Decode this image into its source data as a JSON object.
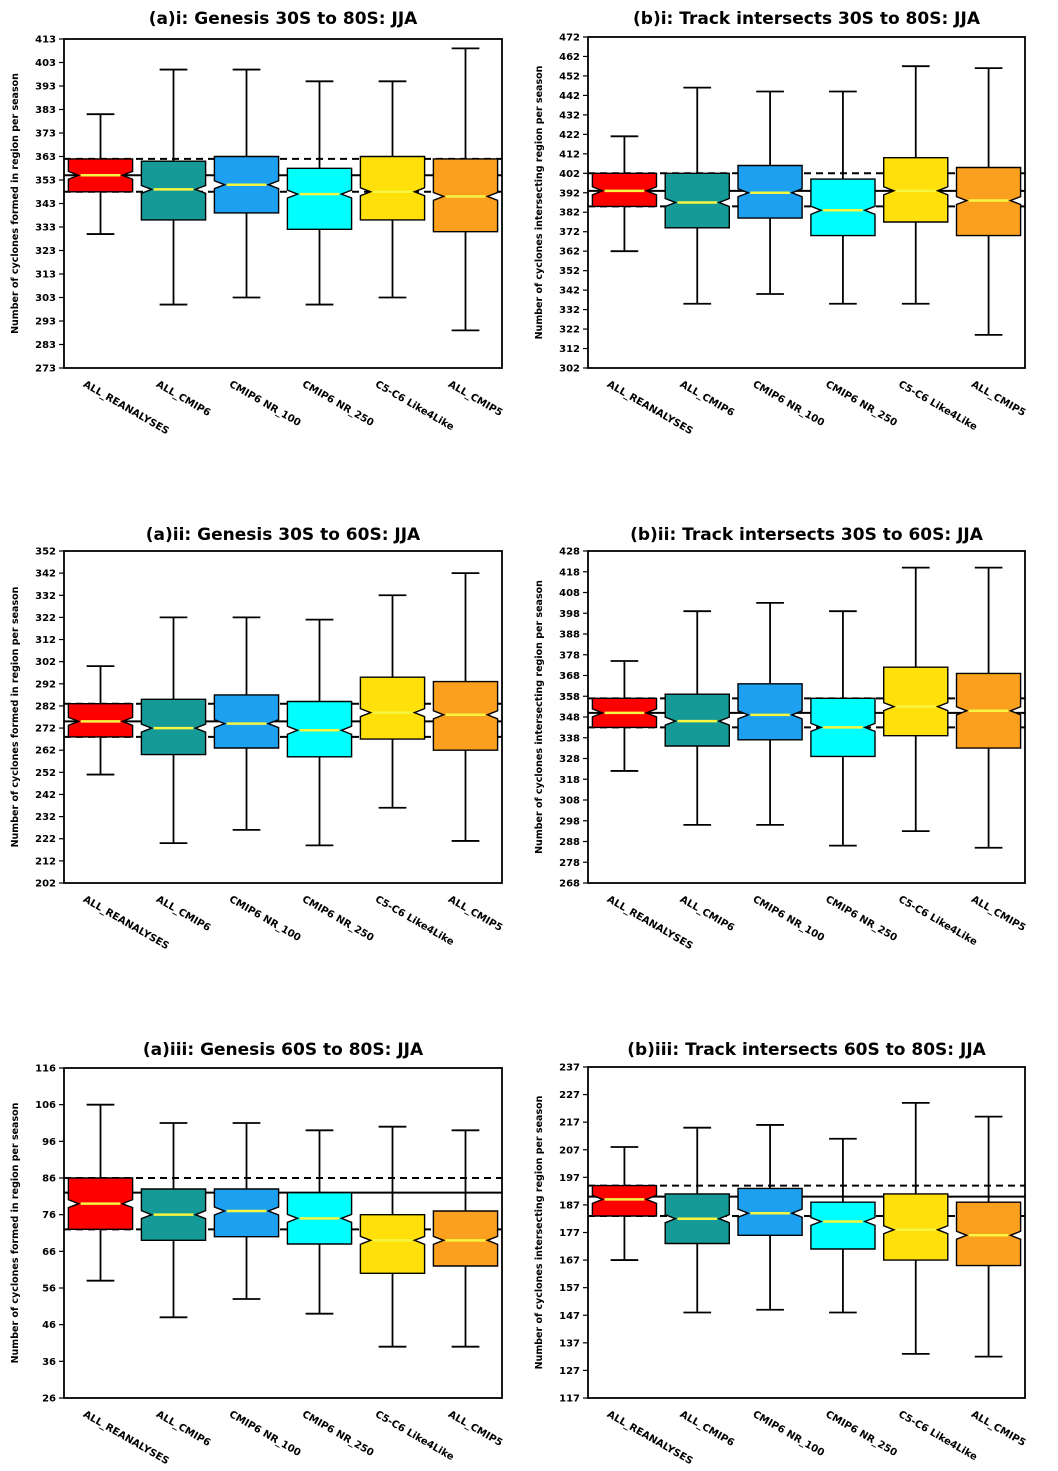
{
  "chart_data": [
    {
      "type": "boxplot",
      "title": "(a)i: Genesis 30S to 80S: JJA",
      "ylabel": "Number of cyclones formed in region per season",
      "ylim": [
        273,
        413
      ],
      "yticks": [
        273,
        283,
        293,
        303,
        313,
        323,
        333,
        343,
        353,
        363,
        373,
        383,
        393,
        403,
        413
      ],
      "categories": [
        "ALL_REANALYSES",
        "ALL_CMIP6",
        "CMIP6 NR_100",
        "CMIP6 NR_250",
        "C5-C6 Like4Like",
        "ALL_CMIP5"
      ],
      "colors": [
        "#ff0000",
        "#159a97",
        "#1ea0f0",
        "#00ffff",
        "#ffe00a",
        "#faa01e"
      ],
      "boxes": [
        {
          "whislo": 330,
          "q1": 348,
          "med": 355,
          "q3": 362,
          "whishi": 381,
          "mean": 355
        },
        {
          "whislo": 300,
          "q1": 336,
          "med": 349,
          "q3": 361,
          "whishi": 400,
          "mean": 353
        },
        {
          "whislo": 303,
          "q1": 339,
          "med": 351,
          "q3": 363,
          "whishi": 400,
          "mean": 354
        },
        {
          "whislo": 300,
          "q1": 332,
          "med": 347,
          "q3": 358,
          "whishi": 395,
          "mean": 348
        },
        {
          "whislo": 303,
          "q1": 336,
          "med": 348,
          "q3": 363,
          "whishi": 395,
          "mean": 351
        },
        {
          "whislo": 289,
          "q1": 331,
          "med": 346,
          "q3": 362,
          "whishi": 409,
          "mean": 350
        }
      ],
      "ref_solid": 355,
      "ref_dashed": [
        348,
        362
      ]
    },
    {
      "type": "boxplot",
      "title": "(b)i: Track intersects 30S to 80S: JJA",
      "ylabel": "Number of cyclones intersecting region per season",
      "ylim": [
        302,
        472
      ],
      "yticks": [
        302,
        312,
        322,
        332,
        342,
        352,
        362,
        372,
        382,
        392,
        402,
        412,
        422,
        432,
        442,
        452,
        462,
        472
      ],
      "categories": [
        "ALL_REANALYSES",
        "ALL_CMIP6",
        "CMIP6 NR_100",
        "CMIP6 NR_250",
        "C5-C6 Like4Like",
        "ALL_CMIP5"
      ],
      "colors": [
        "#ff0000",
        "#159a97",
        "#1ea0f0",
        "#00ffff",
        "#ffe00a",
        "#faa01e"
      ],
      "boxes": [
        {
          "whislo": 362,
          "q1": 385,
          "med": 393,
          "q3": 402,
          "whishi": 421,
          "mean": 393
        },
        {
          "whislo": 335,
          "q1": 374,
          "med": 387,
          "q3": 402,
          "whishi": 446,
          "mean": 391
        },
        {
          "whislo": 340,
          "q1": 379,
          "med": 392,
          "q3": 406,
          "whishi": 444,
          "mean": 393
        },
        {
          "whislo": 335,
          "q1": 370,
          "med": 383,
          "q3": 399,
          "whishi": 444,
          "mean": 386
        },
        {
          "whislo": 335,
          "q1": 377,
          "med": 393,
          "q3": 410,
          "whishi": 457,
          "mean": 394
        },
        {
          "whislo": 319,
          "q1": 370,
          "med": 388,
          "q3": 405,
          "whishi": 456,
          "mean": 388
        }
      ],
      "ref_solid": 393,
      "ref_dashed": [
        385,
        402
      ]
    },
    {
      "type": "boxplot",
      "title": "(a)ii: Genesis 30S to 60S: JJA",
      "ylabel": "Number of cyclones formed in region per season",
      "ylim": [
        202,
        352
      ],
      "yticks": [
        202,
        212,
        222,
        232,
        242,
        252,
        262,
        272,
        282,
        292,
        302,
        312,
        322,
        332,
        342,
        352
      ],
      "categories": [
        "ALL_REANALYSES",
        "ALL_CMIP6",
        "CMIP6 NR_100",
        "CMIP6 NR_250",
        "C5-C6 Like4Like",
        "ALL_CMIP5"
      ],
      "colors": [
        "#ff0000",
        "#159a97",
        "#1ea0f0",
        "#00ffff",
        "#ffe00a",
        "#faa01e"
      ],
      "boxes": [
        {
          "whislo": 251,
          "q1": 268,
          "med": 275,
          "q3": 283,
          "whishi": 300,
          "mean": 275
        },
        {
          "whislo": 220,
          "q1": 260,
          "med": 272,
          "q3": 285,
          "whishi": 322,
          "mean": 276
        },
        {
          "whislo": 226,
          "q1": 263,
          "med": 274,
          "q3": 287,
          "whishi": 322,
          "mean": 279
        },
        {
          "whislo": 219,
          "q1": 259,
          "med": 271,
          "q3": 284,
          "whishi": 321,
          "mean": 275
        },
        {
          "whislo": 236,
          "q1": 267,
          "med": 279,
          "q3": 295,
          "whishi": 332,
          "mean": 280
        },
        {
          "whislo": 221,
          "q1": 262,
          "med": 278,
          "q3": 293,
          "whishi": 342,
          "mean": 280
        }
      ],
      "ref_solid": 275,
      "ref_dashed": [
        268,
        283
      ]
    },
    {
      "type": "boxplot",
      "title": "(b)ii: Track intersects 30S to 60S: JJA",
      "ylabel": "Number of cyclones intersecting region per season",
      "ylim": [
        268,
        428
      ],
      "yticks": [
        268,
        278,
        288,
        298,
        308,
        318,
        328,
        338,
        348,
        358,
        368,
        378,
        388,
        398,
        408,
        418,
        428
      ],
      "categories": [
        "ALL_REANALYSES",
        "ALL_CMIP6",
        "CMIP6 NR_100",
        "CMIP6 NR_250",
        "C5-C6 Like4Like",
        "ALL_CMIP5"
      ],
      "colors": [
        "#ff0000",
        "#159a97",
        "#1ea0f0",
        "#00ffff",
        "#ffe00a",
        "#faa01e"
      ],
      "boxes": [
        {
          "whislo": 322,
          "q1": 343,
          "med": 350,
          "q3": 357,
          "whishi": 375,
          "mean": 350
        },
        {
          "whislo": 296,
          "q1": 334,
          "med": 346,
          "q3": 359,
          "whishi": 399,
          "mean": 350
        },
        {
          "whislo": 296,
          "q1": 337,
          "med": 349,
          "q3": 364,
          "whishi": 403,
          "mean": 352
        },
        {
          "whislo": 286,
          "q1": 329,
          "med": 343,
          "q3": 357,
          "whishi": 399,
          "mean": 346
        },
        {
          "whislo": 293,
          "q1": 339,
          "med": 353,
          "q3": 372,
          "whishi": 420,
          "mean": 355
        },
        {
          "whislo": 285,
          "q1": 333,
          "med": 351,
          "q3": 369,
          "whishi": 420,
          "mean": 352
        }
      ],
      "ref_solid": 350,
      "ref_dashed": [
        343,
        357
      ]
    },
    {
      "type": "boxplot",
      "title": "(a)iii: Genesis 60S to 80S: JJA",
      "ylabel": "Number of cyclones formed in region per season",
      "ylim": [
        26,
        116
      ],
      "yticks": [
        26,
        36,
        46,
        56,
        66,
        76,
        86,
        96,
        106,
        116
      ],
      "categories": [
        "ALL_REANALYSES",
        "ALL_CMIP6",
        "CMIP6 NR_100",
        "CMIP6 NR_250",
        "C5-C6 Like4Like",
        "ALL_CMIP5"
      ],
      "colors": [
        "#ff0000",
        "#159a97",
        "#1ea0f0",
        "#00ffff",
        "#ffe00a",
        "#faa01e"
      ],
      "boxes": [
        {
          "whislo": 58,
          "q1": 72,
          "med": 79,
          "q3": 86,
          "whishi": 106,
          "mean": 82
        },
        {
          "whislo": 48,
          "q1": 69,
          "med": 76,
          "q3": 83,
          "whishi": 101,
          "mean": 76
        },
        {
          "whislo": 53,
          "q1": 70,
          "med": 77,
          "q3": 83,
          "whishi": 101,
          "mean": 78
        },
        {
          "whislo": 49,
          "q1": 68,
          "med": 75,
          "q3": 82,
          "whishi": 99,
          "mean": 75
        },
        {
          "whislo": 40,
          "q1": 60,
          "med": 69,
          "q3": 76,
          "whishi": 100,
          "mean": 69
        },
        {
          "whislo": 40,
          "q1": 62,
          "med": 69,
          "q3": 77,
          "whishi": 99,
          "mean": 71
        }
      ],
      "ref_solid": 82,
      "ref_dashed": [
        72,
        86
      ]
    },
    {
      "type": "boxplot",
      "title": "(b)iii: Track intersects 60S to 80S: JJA",
      "ylabel": "Number of cyclones intersecting region per season",
      "ylim": [
        117,
        237
      ],
      "yticks": [
        117,
        127,
        137,
        147,
        157,
        167,
        177,
        187,
        197,
        207,
        217,
        227,
        237
      ],
      "categories": [
        "ALL_REANALYSES",
        "ALL_CMIP6",
        "CMIP6 NR_100",
        "CMIP6 NR_250",
        "C5-C6 Like4Like",
        "ALL_CMIP5"
      ],
      "colors": [
        "#ff0000",
        "#159a97",
        "#1ea0f0",
        "#00ffff",
        "#ffe00a",
        "#faa01e"
      ],
      "boxes": [
        {
          "whislo": 167,
          "q1": 183,
          "med": 189,
          "q3": 194,
          "whishi": 208,
          "mean": 190
        },
        {
          "whislo": 148,
          "q1": 173,
          "med": 182,
          "q3": 191,
          "whishi": 215,
          "mean": 185
        },
        {
          "whislo": 149,
          "q1": 176,
          "med": 184,
          "q3": 193,
          "whishi": 216,
          "mean": 188
        },
        {
          "whislo": 148,
          "q1": 171,
          "med": 181,
          "q3": 188,
          "whishi": 211,
          "mean": 182
        },
        {
          "whislo": 133,
          "q1": 167,
          "med": 178,
          "q3": 191,
          "whishi": 224,
          "mean": 182
        },
        {
          "whislo": 132,
          "q1": 165,
          "med": 176,
          "q3": 188,
          "whishi": 219,
          "mean": 182
        }
      ],
      "ref_solid": 190,
      "ref_dashed": [
        183,
        194
      ]
    }
  ]
}
